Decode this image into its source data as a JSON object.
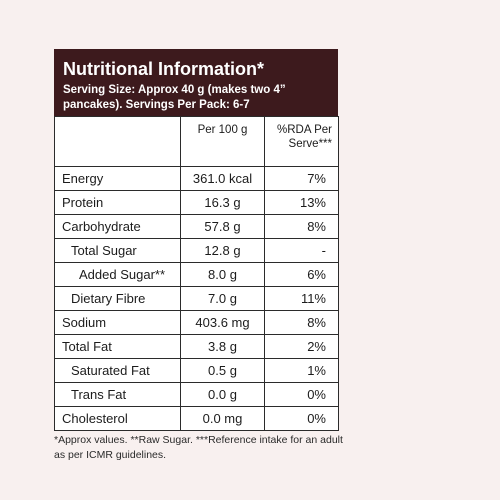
{
  "header": {
    "title": "Nutritional Information*",
    "subtitle": "Serving Size: Approx 40 g (makes two 4” pancakes). Servings Per Pack: 6-7"
  },
  "columns": {
    "nutrient": "",
    "per100": "Per 100 g",
    "rda": "%RDA Per Serve***"
  },
  "rows": [
    {
      "name": "Energy",
      "value": "361.0 kcal",
      "rda": "7%",
      "indent": 0
    },
    {
      "name": "Protein",
      "value": "16.3 g",
      "rda": "13%",
      "indent": 0
    },
    {
      "name": "Carbohydrate",
      "value": "57.8 g",
      "rda": "8%",
      "indent": 0
    },
    {
      "name": "Total Sugar",
      "value": "12.8 g",
      "rda": "-",
      "indent": 1
    },
    {
      "name": "Added Sugar**",
      "value": "8.0 g",
      "rda": "6%",
      "indent": 2
    },
    {
      "name": "Dietary Fibre",
      "value": "7.0 g",
      "rda": "11%",
      "indent": 1
    },
    {
      "name": "Sodium",
      "value": "403.6 mg",
      "rda": "8%",
      "indent": 0
    },
    {
      "name": "Total Fat",
      "value": "3.8 g",
      "rda": "2%",
      "indent": 0
    },
    {
      "name": "Saturated Fat",
      "value": "0.5 g",
      "rda": "1%",
      "indent": 1
    },
    {
      "name": "Trans Fat",
      "value": "0.0 g",
      "rda": "0%",
      "indent": 1
    },
    {
      "name": "Cholesterol",
      "value": "0.0 mg",
      "rda": "0%",
      "indent": 0
    }
  ],
  "footnote": "*Approx values. **Raw Sugar. ***Reference intake for an adult as per ICMR guidelines."
}
